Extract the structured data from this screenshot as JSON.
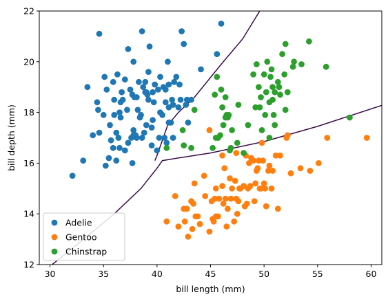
{
  "chart_data": {
    "type": "scatter",
    "xlabel": "bill length (mm)",
    "ylabel": "bill depth (mm)",
    "xlim": [
      29,
      61
    ],
    "ylim": [
      12,
      22
    ],
    "xticks": [
      30,
      35,
      40,
      45,
      50,
      55,
      60
    ],
    "yticks": [
      12,
      14,
      16,
      18,
      20,
      22
    ],
    "legend_position": "lower-left",
    "decision_boundary_color": "#3a0a4a",
    "series": [
      {
        "name": "Adelie",
        "color": "#1f77b4",
        "points": [
          [
            32.1,
            15.5
          ],
          [
            33.1,
            16.1
          ],
          [
            33.5,
            19.0
          ],
          [
            34.0,
            17.1
          ],
          [
            34.4,
            18.4
          ],
          [
            34.5,
            18.1
          ],
          [
            34.6,
            21.1
          ],
          [
            34.6,
            17.2
          ],
          [
            35.0,
            17.9
          ],
          [
            35.1,
            19.4
          ],
          [
            35.2,
            15.9
          ],
          [
            35.3,
            18.9
          ],
          [
            35.5,
            16.2
          ],
          [
            35.6,
            17.5
          ],
          [
            35.7,
            16.9
          ],
          [
            35.9,
            16.6
          ],
          [
            35.9,
            19.2
          ],
          [
            36.0,
            17.9
          ],
          [
            36.0,
            18.5
          ],
          [
            36.2,
            16.1
          ],
          [
            36.2,
            17.2
          ],
          [
            36.3,
            19.5
          ],
          [
            36.4,
            17.0
          ],
          [
            36.5,
            18.0
          ],
          [
            36.6,
            17.8
          ],
          [
            36.7,
            18.8
          ],
          [
            36.8,
            18.5
          ],
          [
            37.0,
            16.5
          ],
          [
            37.0,
            19.3
          ],
          [
            37.2,
            18.1
          ],
          [
            37.3,
            16.8
          ],
          [
            37.3,
            20.5
          ],
          [
            37.5,
            18.9
          ],
          [
            37.6,
            17.0
          ],
          [
            37.7,
            18.7
          ],
          [
            37.8,
            17.3
          ],
          [
            37.8,
            20.0
          ],
          [
            37.9,
            18.6
          ],
          [
            38.0,
            17.1
          ],
          [
            38.1,
            18.6
          ],
          [
            38.2,
            18.1
          ],
          [
            38.3,
            19.2
          ],
          [
            38.5,
            17.9
          ],
          [
            38.6,
            21.2
          ],
          [
            38.6,
            17.0
          ],
          [
            38.7,
            19.0
          ],
          [
            38.8,
            17.2
          ],
          [
            38.9,
            18.8
          ],
          [
            39.0,
            17.5
          ],
          [
            39.1,
            18.7
          ],
          [
            39.2,
            19.6
          ],
          [
            39.3,
            20.6
          ],
          [
            39.5,
            17.4
          ],
          [
            39.6,
            18.8
          ],
          [
            39.7,
            18.4
          ],
          [
            39.8,
            19.1
          ],
          [
            40.0,
            16.5
          ],
          [
            40.1,
            18.9
          ],
          [
            40.2,
            17.0
          ],
          [
            40.3,
            18.0
          ],
          [
            40.5,
            17.9
          ],
          [
            40.6,
            19.0
          ],
          [
            40.7,
            17.0
          ],
          [
            40.8,
            18.4
          ],
          [
            40.9,
            16.8
          ],
          [
            41.0,
            20.0
          ],
          [
            41.1,
            18.2
          ],
          [
            41.1,
            19.1
          ],
          [
            41.3,
            17.6
          ],
          [
            41.4,
            18.5
          ],
          [
            41.5,
            18.3
          ],
          [
            41.6,
            19.2
          ],
          [
            41.8,
            19.4
          ],
          [
            42.0,
            18.2
          ],
          [
            42.1,
            19.1
          ],
          [
            42.2,
            18.5
          ],
          [
            42.3,
            21.2
          ],
          [
            42.5,
            20.7
          ],
          [
            42.7,
            18.3
          ],
          [
            42.8,
            18.5
          ],
          [
            42.9,
            17.6
          ],
          [
            43.2,
            18.5
          ],
          [
            44.1,
            19.7
          ],
          [
            45.6,
            20.3
          ],
          [
            46.0,
            21.5
          ],
          [
            39.5,
            16.7
          ],
          [
            38.1,
            17.0
          ],
          [
            37.7,
            16.0
          ],
          [
            36.6,
            18.4
          ],
          [
            38.9,
            19.2
          ],
          [
            37.8,
            17.1
          ],
          [
            39.0,
            18.8
          ],
          [
            40.3,
            19.4
          ],
          [
            41.1,
            17.6
          ],
          [
            39.2,
            18.5
          ],
          [
            40.8,
            18.9
          ],
          [
            36.5,
            16.6
          ],
          [
            39.6,
            17.7
          ],
          [
            41.5,
            17.0
          ],
          [
            38.4,
            17.8
          ]
        ]
      },
      {
        "name": "Gentoo",
        "color": "#ff7f0e",
        "points": [
          [
            40.9,
            13.7
          ],
          [
            41.7,
            14.7
          ],
          [
            42.0,
            13.5
          ],
          [
            42.5,
            14.2
          ],
          [
            42.6,
            13.7
          ],
          [
            42.8,
            14.2
          ],
          [
            42.9,
            13.1
          ],
          [
            43.2,
            14.5
          ],
          [
            43.3,
            13.4
          ],
          [
            43.4,
            14.4
          ],
          [
            43.5,
            15.2
          ],
          [
            43.6,
            13.9
          ],
          [
            43.8,
            13.9
          ],
          [
            44.0,
            13.6
          ],
          [
            44.4,
            15.5
          ],
          [
            44.5,
            14.7
          ],
          [
            44.9,
            13.3
          ],
          [
            45.1,
            14.5
          ],
          [
            45.2,
            13.8
          ],
          [
            45.3,
            13.7
          ],
          [
            45.4,
            14.6
          ],
          [
            45.5,
            13.9
          ],
          [
            45.5,
            15.0
          ],
          [
            45.7,
            13.9
          ],
          [
            45.8,
            14.6
          ],
          [
            46.1,
            15.1
          ],
          [
            46.2,
            14.4
          ],
          [
            46.3,
            15.8
          ],
          [
            46.4,
            14.6
          ],
          [
            46.5,
            13.5
          ],
          [
            46.6,
            14.2
          ],
          [
            46.8,
            15.4
          ],
          [
            46.9,
            14.6
          ],
          [
            47.0,
            15.0
          ],
          [
            47.2,
            13.7
          ],
          [
            47.3,
            15.3
          ],
          [
            47.4,
            14.6
          ],
          [
            47.5,
            14.0
          ],
          [
            47.6,
            14.5
          ],
          [
            47.7,
            15.0
          ],
          [
            47.8,
            15.0
          ],
          [
            48.1,
            15.1
          ],
          [
            48.2,
            14.3
          ],
          [
            48.4,
            14.4
          ],
          [
            48.5,
            15.0
          ],
          [
            48.6,
            16.0
          ],
          [
            48.7,
            15.1
          ],
          [
            48.8,
            16.2
          ],
          [
            49.0,
            16.1
          ],
          [
            49.1,
            14.5
          ],
          [
            49.2,
            15.2
          ],
          [
            49.3,
            15.7
          ],
          [
            49.4,
            15.8
          ],
          [
            49.5,
            16.1
          ],
          [
            49.6,
            15.0
          ],
          [
            49.8,
            16.8
          ],
          [
            49.9,
            16.1
          ],
          [
            50.0,
            15.2
          ],
          [
            50.1,
            15.0
          ],
          [
            50.2,
            14.3
          ],
          [
            50.4,
            15.7
          ],
          [
            50.5,
            15.9
          ],
          [
            50.7,
            15.0
          ],
          [
            50.8,
            15.7
          ],
          [
            51.1,
            16.3
          ],
          [
            51.3,
            14.2
          ],
          [
            51.5,
            16.3
          ],
          [
            52.1,
            17.0
          ],
          [
            52.2,
            17.1
          ],
          [
            52.5,
            15.6
          ],
          [
            53.4,
            15.8
          ],
          [
            54.3,
            15.7
          ],
          [
            55.1,
            16.0
          ],
          [
            55.9,
            17.0
          ],
          [
            59.6,
            17.0
          ],
          [
            44.9,
            17.3
          ],
          [
            46.1,
            16.3
          ],
          [
            47.4,
            16.4
          ],
          [
            48.3,
            16.3
          ],
          [
            49.7,
            15.0
          ]
        ]
      },
      {
        "name": "Chinstrap",
        "color": "#2ca02c",
        "points": [
          [
            40.9,
            16.6
          ],
          [
            42.4,
            17.3
          ],
          [
            42.5,
            16.7
          ],
          [
            43.2,
            16.6
          ],
          [
            43.5,
            18.1
          ],
          [
            45.2,
            16.6
          ],
          [
            45.4,
            18.7
          ],
          [
            45.5,
            17.0
          ],
          [
            45.6,
            19.4
          ],
          [
            45.7,
            17.0
          ],
          [
            45.9,
            17.1
          ],
          [
            46.0,
            18.9
          ],
          [
            46.1,
            18.2
          ],
          [
            46.2,
            17.5
          ],
          [
            46.4,
            18.6
          ],
          [
            46.4,
            17.8
          ],
          [
            46.5,
            17.9
          ],
          [
            46.6,
            17.8
          ],
          [
            46.7,
            17.9
          ],
          [
            46.8,
            16.5
          ],
          [
            46.9,
            16.6
          ],
          [
            47.0,
            17.3
          ],
          [
            47.5,
            16.8
          ],
          [
            47.6,
            18.3
          ],
          [
            48.1,
            16.4
          ],
          [
            48.5,
            17.5
          ],
          [
            49.0,
            19.5
          ],
          [
            49.2,
            18.2
          ],
          [
            49.3,
            19.9
          ],
          [
            49.5,
            19.0
          ],
          [
            49.6,
            18.2
          ],
          [
            49.7,
            18.6
          ],
          [
            49.8,
            17.3
          ],
          [
            50.0,
            19.5
          ],
          [
            50.1,
            17.9
          ],
          [
            50.2,
            18.8
          ],
          [
            50.3,
            20.0
          ],
          [
            50.5,
            18.4
          ],
          [
            50.6,
            19.4
          ],
          [
            50.7,
            19.7
          ],
          [
            50.8,
            18.5
          ],
          [
            50.9,
            17.9
          ],
          [
            51.0,
            18.8
          ],
          [
            51.3,
            19.2
          ],
          [
            51.4,
            19.0
          ],
          [
            51.5,
            18.7
          ],
          [
            51.7,
            20.3
          ],
          [
            51.9,
            19.5
          ],
          [
            52.0,
            20.7
          ],
          [
            52.0,
            18.1
          ],
          [
            52.2,
            18.8
          ],
          [
            52.7,
            19.8
          ],
          [
            52.8,
            20.0
          ],
          [
            53.5,
            19.9
          ],
          [
            54.2,
            20.8
          ],
          [
            55.8,
            19.8
          ],
          [
            58.0,
            17.8
          ],
          [
            50.5,
            17.0
          ],
          [
            51.0,
            17.5
          ],
          [
            50.8,
            19.0
          ]
        ]
      }
    ],
    "decision_boundaries": [
      [
        [
          30.2,
          12.0
        ],
        [
          33.0,
          12.95
        ],
        [
          36.0,
          14.0
        ],
        [
          38.5,
          15.0
        ],
        [
          40.0,
          15.8
        ],
        [
          40.5,
          16.1
        ],
        [
          41.5,
          16.17
        ],
        [
          45.0,
          16.4
        ],
        [
          50.0,
          16.85
        ],
        [
          55.0,
          17.45
        ],
        [
          61.0,
          18.28
        ]
      ],
      [
        [
          39.8,
          16.1
        ],
        [
          40.0,
          16.3
        ],
        [
          41.0,
          17.5
        ],
        [
          42.0,
          18.0
        ],
        [
          43.5,
          18.6
        ],
        [
          46.0,
          19.9
        ],
        [
          48.0,
          20.9
        ],
        [
          49.6,
          22.0
        ]
      ]
    ]
  }
}
